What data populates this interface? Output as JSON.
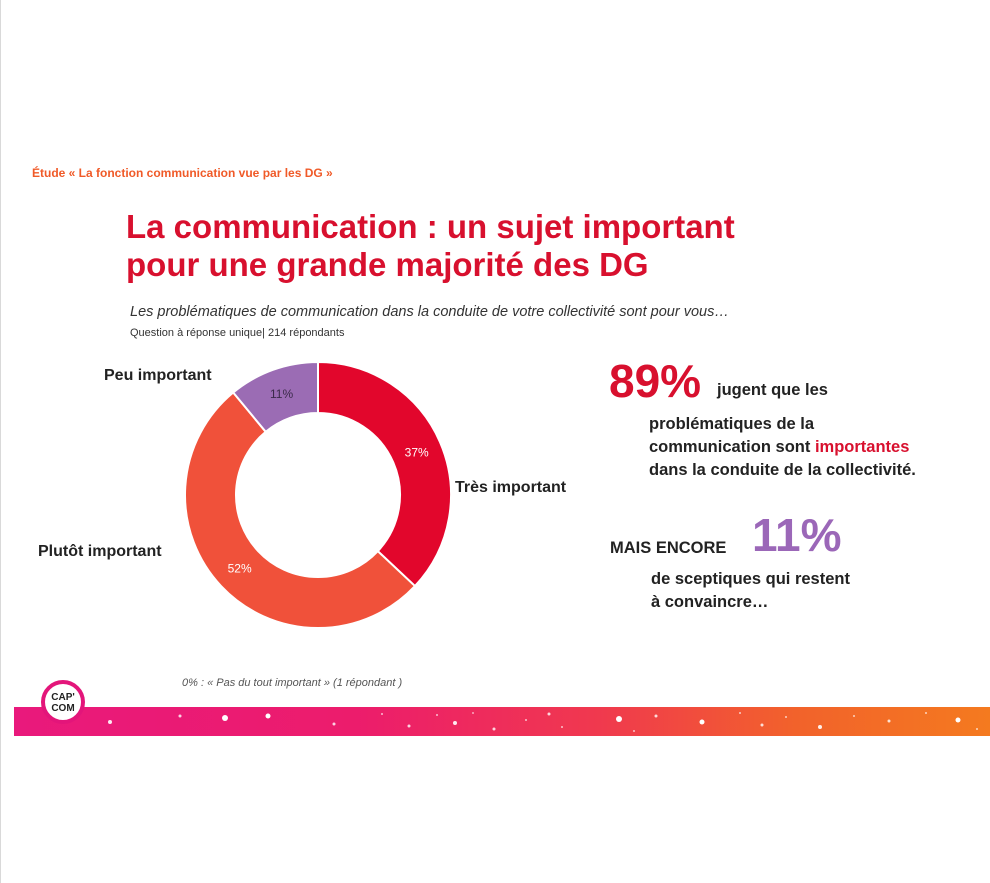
{
  "header": {
    "eyebrow": "Étude « La fonction communication vue par les DG »",
    "title_line1": "La communication : un sujet important",
    "title_line2": "pour une grande majorité des DG",
    "question": "Les problématiques de communication dans la conduite de votre collectivité sont pour vous…",
    "respondents": "Question à réponse unique| 214 répondants"
  },
  "chart_data": {
    "type": "pie",
    "donut": true,
    "title": "",
    "categories": [
      "Très important",
      "Plutôt important",
      "Peu important"
    ],
    "values": [
      37,
      52,
      11
    ],
    "value_labels": [
      "37%",
      "52%",
      "11%"
    ],
    "colors": [
      "#e2062c",
      "#f0513a",
      "#9b6cb4"
    ],
    "start_angle_deg": 0,
    "direction": "clockwise",
    "legend": "none",
    "note": "0% : « Pas du tout important » (1 répondant )"
  },
  "kpi1": {
    "value": "89%",
    "line1": "jugent que les",
    "line2": "problématiques de la",
    "line3_before": "communication sont ",
    "line3_highlight": "importantes",
    "line4": "dans la conduite de la collectivité."
  },
  "kpi2": {
    "lead": "MAIS ENCORE",
    "value": "11%",
    "line1": "de sceptiques qui restent",
    "line2": "à convaincre…"
  },
  "logo": {
    "line1": "CAP'",
    "line2": "COM"
  },
  "colors": {
    "accent_red": "#d8102e",
    "accent_orange": "#f05a28",
    "accent_purple": "#9b67b8",
    "band_magenta": "#e9197c",
    "band_orange": "#f47a1f"
  }
}
